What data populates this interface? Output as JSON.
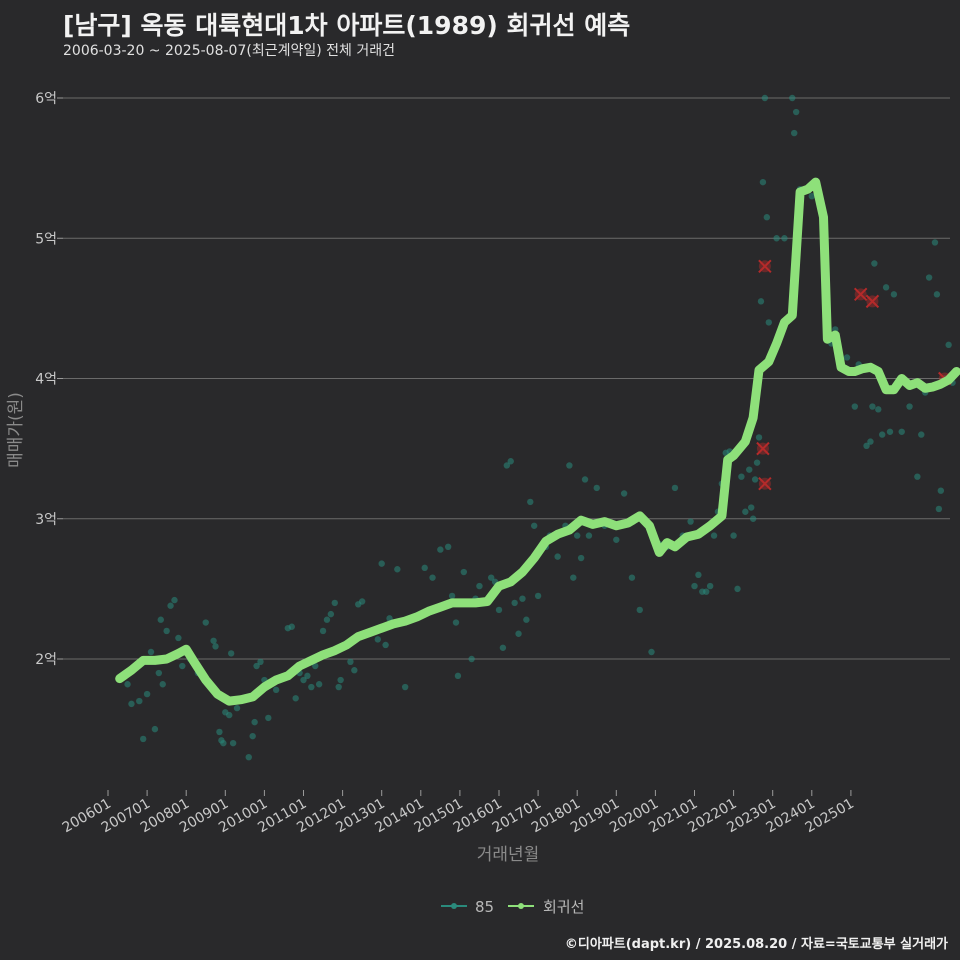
{
  "header": {
    "title": "[남구] 옥동 대륙현대1차 아파트(1989) 회귀선 예측",
    "subtitle": "2006-03-20 ~ 2025-08-07(최근계약일) 전체 거래건"
  },
  "footer": {
    "credit": "©디아파트(dapt.kr) / 2025.08.20 / 자료=국토교통부 실거래가"
  },
  "colors": {
    "background": "#29292b",
    "grid": "#6a6a6a",
    "scatter": "#2a8a7c",
    "line": "#8ee07a",
    "outlier": "#b52a2a"
  },
  "chart_data": {
    "type": "line",
    "title": "[남구] 옥동 대륙현대1차 아파트(1989) 회귀선 예측",
    "xlabel": "거래년월",
    "ylabel": "매매가(원)",
    "ylim": [
      1.2,
      6.2
    ],
    "y_ticks": [
      2,
      3,
      4,
      5,
      6
    ],
    "y_tick_labels": [
      "2억",
      "3억",
      "4억",
      "5억",
      "6억"
    ],
    "x_ticks": [
      "200601",
      "200701",
      "200801",
      "200901",
      "201001",
      "201101",
      "201201",
      "201301",
      "201401",
      "201501",
      "201601",
      "201701",
      "201801",
      "201901",
      "202001",
      "202101",
      "202201",
      "202301",
      "202401",
      "202501"
    ],
    "grid": true,
    "legend_position": "bottom",
    "legend": [
      "85",
      "회귀선"
    ],
    "series": [
      {
        "name": "회귀선",
        "kind": "line",
        "points": [
          [
            2006.3,
            1.86
          ],
          [
            2006.6,
            1.92
          ],
          [
            2006.9,
            1.99
          ],
          [
            2007.2,
            1.99
          ],
          [
            2007.5,
            2.0
          ],
          [
            2007.8,
            2.04
          ],
          [
            2008.0,
            2.07
          ],
          [
            2008.2,
            1.98
          ],
          [
            2008.5,
            1.85
          ],
          [
            2008.8,
            1.75
          ],
          [
            2009.1,
            1.7
          ],
          [
            2009.4,
            1.71
          ],
          [
            2009.7,
            1.73
          ],
          [
            2010.0,
            1.8
          ],
          [
            2010.3,
            1.85
          ],
          [
            2010.6,
            1.88
          ],
          [
            2010.9,
            1.95
          ],
          [
            2011.2,
            1.99
          ],
          [
            2011.5,
            2.03
          ],
          [
            2011.8,
            2.06
          ],
          [
            2012.1,
            2.1
          ],
          [
            2012.4,
            2.16
          ],
          [
            2012.7,
            2.19
          ],
          [
            2013.0,
            2.22
          ],
          [
            2013.3,
            2.25
          ],
          [
            2013.6,
            2.27
          ],
          [
            2013.9,
            2.3
          ],
          [
            2014.2,
            2.34
          ],
          [
            2014.5,
            2.37
          ],
          [
            2014.8,
            2.4
          ],
          [
            2015.1,
            2.4
          ],
          [
            2015.4,
            2.4
          ],
          [
            2015.7,
            2.41
          ],
          [
            2016.0,
            2.52
          ],
          [
            2016.3,
            2.55
          ],
          [
            2016.6,
            2.62
          ],
          [
            2016.9,
            2.72
          ],
          [
            2017.2,
            2.84
          ],
          [
            2017.5,
            2.89
          ],
          [
            2017.8,
            2.92
          ],
          [
            2018.1,
            2.99
          ],
          [
            2018.4,
            2.96
          ],
          [
            2018.7,
            2.98
          ],
          [
            2019.0,
            2.95
          ],
          [
            2019.3,
            2.97
          ],
          [
            2019.6,
            3.02
          ],
          [
            2019.85,
            2.95
          ],
          [
            2020.1,
            2.76
          ],
          [
            2020.3,
            2.83
          ],
          [
            2020.5,
            2.8
          ],
          [
            2020.8,
            2.87
          ],
          [
            2021.1,
            2.89
          ],
          [
            2021.4,
            2.95
          ],
          [
            2021.7,
            3.02
          ],
          [
            2021.85,
            3.42
          ],
          [
            2022.0,
            3.45
          ],
          [
            2022.3,
            3.55
          ],
          [
            2022.5,
            3.72
          ],
          [
            2022.65,
            4.06
          ],
          [
            2022.9,
            4.12
          ],
          [
            2023.1,
            4.25
          ],
          [
            2023.3,
            4.4
          ],
          [
            2023.5,
            4.45
          ],
          [
            2023.7,
            5.33
          ],
          [
            2023.9,
            5.35
          ],
          [
            2024.1,
            5.4
          ],
          [
            2024.3,
            5.15
          ],
          [
            2024.4,
            4.28
          ],
          [
            2024.6,
            4.31
          ],
          [
            2024.75,
            4.08
          ],
          [
            2024.95,
            4.05
          ],
          [
            2025.1,
            4.05
          ],
          [
            2025.3,
            4.07
          ],
          [
            2025.5,
            4.08
          ],
          [
            2025.7,
            4.05
          ],
          [
            2025.9,
            3.92
          ],
          [
            2026.1,
            3.92
          ],
          [
            2026.3,
            4.0
          ],
          [
            2026.5,
            3.95
          ],
          [
            2026.7,
            3.97
          ],
          [
            2026.9,
            3.93
          ],
          [
            2027.1,
            3.94
          ],
          [
            2027.3,
            3.96
          ],
          [
            2027.5,
            3.99
          ],
          [
            2027.7,
            4.05
          ]
        ]
      },
      {
        "name": "85",
        "kind": "scatter",
        "points": [
          [
            2006.5,
            1.82
          ],
          [
            2006.6,
            1.68
          ],
          [
            2006.8,
            1.7
          ],
          [
            2006.9,
            1.43
          ],
          [
            2007.0,
            1.75
          ],
          [
            2007.1,
            2.05
          ],
          [
            2007.2,
            1.5
          ],
          [
            2007.3,
            1.9
          ],
          [
            2007.35,
            2.28
          ],
          [
            2007.4,
            1.82
          ],
          [
            2007.5,
            2.2
          ],
          [
            2007.6,
            2.38
          ],
          [
            2007.7,
            2.42
          ],
          [
            2007.8,
            2.15
          ],
          [
            2007.9,
            1.95
          ],
          [
            2008.1,
            2.0
          ],
          [
            2008.3,
            1.9
          ],
          [
            2008.5,
            2.26
          ],
          [
            2008.7,
            2.13
          ],
          [
            2008.75,
            2.09
          ],
          [
            2008.85,
            1.48
          ],
          [
            2008.9,
            1.42
          ],
          [
            2008.95,
            1.4
          ],
          [
            2009.0,
            1.62
          ],
          [
            2009.1,
            1.6
          ],
          [
            2009.15,
            2.04
          ],
          [
            2009.2,
            1.4
          ],
          [
            2009.3,
            1.65
          ],
          [
            2009.5,
            1.72
          ],
          [
            2009.6,
            1.3
          ],
          [
            2009.7,
            1.45
          ],
          [
            2009.75,
            1.55
          ],
          [
            2009.8,
            1.95
          ],
          [
            2009.9,
            1.98
          ],
          [
            2010.0,
            1.85
          ],
          [
            2010.1,
            1.58
          ],
          [
            2010.3,
            1.78
          ],
          [
            2010.4,
            1.85
          ],
          [
            2010.6,
            2.22
          ],
          [
            2010.7,
            2.23
          ],
          [
            2010.8,
            1.72
          ],
          [
            2010.9,
            1.9
          ],
          [
            2011.0,
            1.85
          ],
          [
            2011.1,
            1.88
          ],
          [
            2011.2,
            1.8
          ],
          [
            2011.3,
            1.95
          ],
          [
            2011.4,
            1.82
          ],
          [
            2011.5,
            2.2
          ],
          [
            2011.6,
            2.28
          ],
          [
            2011.7,
            2.32
          ],
          [
            2011.8,
            2.4
          ],
          [
            2011.9,
            1.8
          ],
          [
            2011.95,
            1.85
          ],
          [
            2012.2,
            1.98
          ],
          [
            2012.3,
            1.92
          ],
          [
            2012.4,
            2.39
          ],
          [
            2012.5,
            2.41
          ],
          [
            2012.7,
            2.18
          ],
          [
            2012.9,
            2.14
          ],
          [
            2013.0,
            2.68
          ],
          [
            2013.1,
            2.1
          ],
          [
            2013.2,
            2.29
          ],
          [
            2013.4,
            2.64
          ],
          [
            2013.6,
            1.8
          ],
          [
            2013.9,
            2.3
          ],
          [
            2014.1,
            2.65
          ],
          [
            2014.3,
            2.58
          ],
          [
            2014.5,
            2.78
          ],
          [
            2014.7,
            2.8
          ],
          [
            2014.8,
            2.45
          ],
          [
            2014.9,
            2.26
          ],
          [
            2014.95,
            1.88
          ],
          [
            2015.1,
            2.62
          ],
          [
            2015.3,
            2.0
          ],
          [
            2015.4,
            2.43
          ],
          [
            2015.5,
            2.52
          ],
          [
            2015.8,
            2.58
          ],
          [
            2015.9,
            2.55
          ],
          [
            2016.0,
            2.35
          ],
          [
            2016.1,
            2.08
          ],
          [
            2016.2,
            3.38
          ],
          [
            2016.3,
            3.41
          ],
          [
            2016.4,
            2.4
          ],
          [
            2016.5,
            2.18
          ],
          [
            2016.6,
            2.43
          ],
          [
            2016.7,
            2.28
          ],
          [
            2016.8,
            3.12
          ],
          [
            2016.9,
            2.95
          ],
          [
            2017.0,
            2.45
          ],
          [
            2017.2,
            2.8
          ],
          [
            2017.3,
            2.88
          ],
          [
            2017.5,
            2.73
          ],
          [
            2017.7,
            2.95
          ],
          [
            2017.8,
            3.38
          ],
          [
            2017.9,
            2.58
          ],
          [
            2018.0,
            2.88
          ],
          [
            2018.1,
            2.72
          ],
          [
            2018.2,
            3.28
          ],
          [
            2018.3,
            2.88
          ],
          [
            2018.5,
            3.22
          ],
          [
            2018.7,
            2.95
          ],
          [
            2019.0,
            2.85
          ],
          [
            2019.2,
            3.18
          ],
          [
            2019.4,
            2.58
          ],
          [
            2019.6,
            2.35
          ],
          [
            2019.9,
            2.05
          ],
          [
            2020.1,
            2.82
          ],
          [
            2020.3,
            2.8
          ],
          [
            2020.5,
            3.22
          ],
          [
            2020.7,
            2.88
          ],
          [
            2020.9,
            2.98
          ],
          [
            2021.0,
            2.52
          ],
          [
            2021.1,
            2.6
          ],
          [
            2021.2,
            2.48
          ],
          [
            2021.3,
            2.48
          ],
          [
            2021.4,
            2.52
          ],
          [
            2021.5,
            2.88
          ],
          [
            2021.6,
            3.05
          ],
          [
            2021.7,
            3.25
          ],
          [
            2021.8,
            3.47
          ],
          [
            2021.9,
            3.48
          ],
          [
            2022.0,
            2.88
          ],
          [
            2022.1,
            2.5
          ],
          [
            2022.2,
            3.3
          ],
          [
            2022.3,
            3.05
          ],
          [
            2022.4,
            3.35
          ],
          [
            2022.45,
            3.08
          ],
          [
            2022.5,
            3.0
          ],
          [
            2022.55,
            3.28
          ],
          [
            2022.6,
            3.4
          ],
          [
            2022.65,
            3.58
          ],
          [
            2022.7,
            4.55
          ],
          [
            2022.75,
            5.4
          ],
          [
            2022.8,
            6.0
          ],
          [
            2022.85,
            5.15
          ],
          [
            2022.9,
            4.4
          ],
          [
            2023.1,
            5.0
          ],
          [
            2023.3,
            5.0
          ],
          [
            2023.5,
            6.0
          ],
          [
            2023.55,
            5.75
          ],
          [
            2023.6,
            5.9
          ],
          [
            2023.7,
            5.35
          ],
          [
            2024.0,
            5.3
          ],
          [
            2024.5,
            4.25
          ],
          [
            2024.6,
            4.35
          ],
          [
            2024.9,
            4.15
          ],
          [
            2025.1,
            3.8
          ],
          [
            2025.2,
            4.1
          ],
          [
            2025.4,
            3.52
          ],
          [
            2025.5,
            3.55
          ],
          [
            2025.55,
            3.8
          ],
          [
            2025.6,
            4.82
          ],
          [
            2025.7,
            3.78
          ],
          [
            2025.8,
            3.6
          ],
          [
            2025.9,
            4.65
          ],
          [
            2026.0,
            3.62
          ],
          [
            2026.1,
            4.6
          ],
          [
            2026.3,
            3.62
          ],
          [
            2026.5,
            3.8
          ],
          [
            2026.7,
            3.3
          ],
          [
            2026.8,
            3.6
          ],
          [
            2026.9,
            3.9
          ],
          [
            2027.0,
            4.72
          ],
          [
            2027.15,
            4.97
          ],
          [
            2027.2,
            4.6
          ],
          [
            2027.25,
            3.07
          ],
          [
            2027.3,
            3.2
          ],
          [
            2027.4,
            4.0
          ],
          [
            2027.5,
            4.24
          ],
          [
            2027.6,
            3.97
          ]
        ]
      },
      {
        "name": "outliers",
        "kind": "cross",
        "points": [
          [
            2022.8,
            4.8
          ],
          [
            2022.75,
            3.5
          ],
          [
            2022.8,
            3.25
          ],
          [
            2025.25,
            4.6
          ],
          [
            2025.55,
            4.55
          ],
          [
            2027.4,
            4.0
          ]
        ]
      }
    ]
  }
}
